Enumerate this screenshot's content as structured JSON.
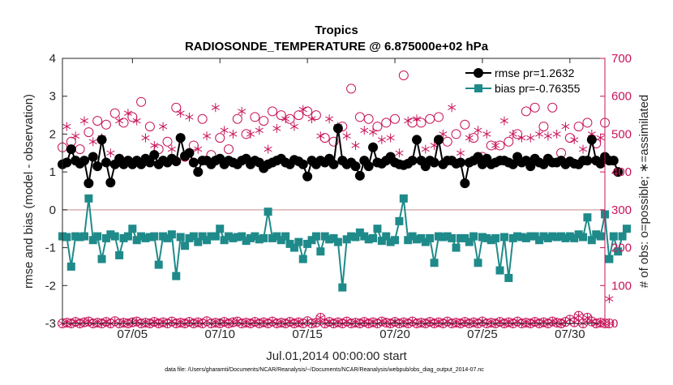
{
  "colors": {
    "rmse": "#000000",
    "bias": "#1f8a8a",
    "obs": "#c8145a",
    "zeroline": "#d9b0b0",
    "axis": "#262626"
  },
  "chart_data": {
    "type": "line",
    "title": "Tropics",
    "subtitle": "RADIOSONDE_TEMPERATURE @ 6.875000e+02 hPa",
    "xlabel": "Jul.01,2014 00:00:00 start",
    "ylabel_left": "rmse and bias (model - observation)",
    "ylabel_right": "# of obs: o=possible; ∗=assimilated",
    "footer": "data file: /Users/gharamti/Documents/NCAR/Reanalysis/~/Documents/NCAR/Reanalysis/webpub/obs_diag_output_2014-07.nc",
    "xlim": [
      1.0,
      32.0
    ],
    "ylim_left": [
      -3,
      4
    ],
    "ylim_right": [
      0,
      700
    ],
    "x_ticks": [
      5,
      10,
      15,
      20,
      25,
      30
    ],
    "x_tick_labels": [
      "07/05",
      "07/10",
      "07/15",
      "07/20",
      "07/25",
      "07/30"
    ],
    "y_left_ticks": [
      -3,
      -2,
      -1,
      0,
      1,
      2,
      3,
      4
    ],
    "y_left_tick_labels": [
      "-3",
      "-2",
      "-1",
      "0",
      "1",
      "2",
      "3",
      "4"
    ],
    "y_right_ticks": [
      0,
      100,
      200,
      300,
      400,
      500,
      600,
      700
    ],
    "y_right_tick_labels": [
      "0",
      "100",
      "200",
      "300",
      "400",
      "500",
      "600",
      "700"
    ],
    "legend": {
      "position": "top-right",
      "entries": [
        {
          "name": "rmse pr=1.2632",
          "series": "rmse"
        },
        {
          "name": "bias pr=-0.76355",
          "series": "bias"
        }
      ]
    },
    "x_step_days": 0.25,
    "series": [
      {
        "name": "rmse",
        "values": [
          1.2,
          1.25,
          1.6,
          1.3,
          1.22,
          1.3,
          0.7,
          1.4,
          1.15,
          1.85,
          1.25,
          0.72,
          1.2,
          1.35,
          1.2,
          1.3,
          1.2,
          1.3,
          1.2,
          1.35,
          1.25,
          1.45,
          1.2,
          1.3,
          1.25,
          1.35,
          1.28,
          1.9,
          1.42,
          1.5,
          1.25,
          1.0,
          1.3,
          1.3,
          1.2,
          1.3,
          1.35,
          1.2,
          1.3,
          1.25,
          1.2,
          1.3,
          1.35,
          1.2,
          1.3,
          1.25,
          1.1,
          1.2,
          1.25,
          1.3,
          1.35,
          1.25,
          1.2,
          1.32,
          1.28,
          1.2,
          0.88,
          1.3,
          1.2,
          1.3,
          1.25,
          1.35,
          1.2,
          2.15,
          1.3,
          1.2,
          1.25,
          1.15,
          0.9,
          1.3,
          1.15,
          1.65,
          1.25,
          1.22,
          1.3,
          1.4,
          1.25,
          1.2,
          1.18,
          1.22,
          1.3,
          1.85,
          1.3,
          1.15,
          1.3,
          1.25,
          1.85,
          1.2,
          1.3,
          1.3,
          1.22,
          1.25,
          0.7,
          1.25,
          1.3,
          1.4,
          1.2,
          1.35,
          1.2,
          1.25,
          1.3,
          1.3,
          1.25,
          1.2,
          1.4,
          1.25,
          1.3,
          1.15,
          1.35,
          1.25,
          1.2,
          1.35,
          1.25,
          1.25,
          1.3,
          1.2,
          1.28,
          1.22,
          1.2,
          1.3,
          1.3,
          1.85,
          1.3,
          1.22,
          1.4,
          1.3,
          1.3,
          1.0
        ]
      },
      {
        "name": "bias",
        "values": [
          -0.7,
          -0.72,
          -1.5,
          -0.7,
          -0.72,
          -0.7,
          0.3,
          -0.8,
          -0.7,
          -1.3,
          -0.75,
          -0.65,
          -0.7,
          -1.2,
          -0.75,
          -0.7,
          -0.5,
          -0.8,
          -0.7,
          -0.75,
          -0.72,
          -0.7,
          -1.45,
          -0.7,
          -0.75,
          -0.65,
          -1.75,
          -0.72,
          -0.95,
          -0.75,
          -0.7,
          -0.85,
          -0.7,
          -0.8,
          -0.7,
          -0.7,
          -0.5,
          -0.8,
          -0.7,
          -0.75,
          -0.72,
          -0.7,
          -0.82,
          -0.75,
          -0.7,
          -0.78,
          -0.75,
          -0.05,
          -0.75,
          -0.7,
          -0.8,
          -0.7,
          -0.9,
          -1.0,
          -0.85,
          -1.3,
          -0.9,
          -0.8,
          -0.7,
          -1.1,
          -0.7,
          -0.78,
          -0.75,
          -0.85,
          -2.05,
          -0.78,
          -0.7,
          -0.72,
          -0.6,
          -0.7,
          -0.78,
          -0.75,
          -0.5,
          -0.82,
          -0.7,
          -0.85,
          -0.8,
          -0.3,
          0.3,
          -0.8,
          -0.7,
          -0.78,
          -0.75,
          -0.85,
          -0.75,
          -1.4,
          -0.7,
          -0.72,
          -0.7,
          -0.75,
          -1.0,
          -0.75,
          -0.75,
          -0.85,
          -0.7,
          -1.4,
          -0.72,
          -0.75,
          -0.8,
          -0.75,
          -1.6,
          -0.72,
          -1.8,
          -0.75,
          -0.7,
          -0.72,
          -0.75,
          -0.7,
          -0.7,
          -0.8,
          -0.7,
          -0.75,
          -0.7,
          -0.72,
          -0.7,
          -0.75,
          -0.7,
          -0.75,
          -0.65,
          -0.72,
          -0.2,
          -0.8,
          -0.65,
          -0.7,
          -0.12,
          -1.3,
          -0.7,
          -1.1,
          -0.7,
          -0.5
        ]
      },
      {
        "name": "obs_possible",
        "values": [
          465,
          530,
          480,
          505,
          460,
          545,
          505,
          490,
          535,
          500,
          525,
          460,
          555,
          545,
          530,
          565,
          545,
          545,
          585,
          500,
          520,
          480,
          460,
          530,
          480,
          470,
          570,
          565,
          440,
          555,
          470,
          470,
          540,
          505,
          445,
          580,
          490,
          520,
          460,
          510,
          540,
          570,
          500,
          510,
          545,
          520,
          535,
          470,
          560,
          525,
          550,
          550,
          540,
          530,
          550,
          575,
          560,
          550,
          550,
          505,
          490,
          550,
          480,
          530,
          520,
          505,
          620,
          480,
          545,
          520,
          540,
          515,
          520,
          495,
          530,
          500,
          540,
          460,
          655,
          545,
          530,
          550,
          530,
          470,
          540,
          480,
          545,
          510,
          480,
          580,
          500,
          460,
          525,
          500,
          490,
          520,
          440,
          510,
          470,
          480,
          470,
          545,
          480,
          510,
          500,
          500,
          560,
          500,
          570,
          510,
          520,
          505,
          570,
          510,
          450,
          530,
          490,
          495,
          520,
          470,
          530,
          510,
          475,
          500,
          530,
          75
        ]
      },
      {
        "name": "obs_assimilated",
        "values": [
          455,
          520,
          470,
          495,
          450,
          535,
          495,
          480,
          525,
          490,
          515,
          450,
          545,
          535,
          520,
          555,
          535,
          535,
          575,
          490,
          510,
          470,
          450,
          520,
          470,
          460,
          560,
          555,
          430,
          545,
          460,
          460,
          530,
          495,
          435,
          570,
          480,
          510,
          450,
          500,
          530,
          560,
          490,
          500,
          535,
          510,
          525,
          460,
          550,
          515,
          540,
          540,
          530,
          520,
          540,
          565,
          550,
          540,
          540,
          495,
          480,
          540,
          470,
          520,
          510,
          495,
          610,
          470,
          535,
          510,
          530,
          505,
          510,
          485,
          520,
          490,
          530,
          450,
          645,
          535,
          520,
          540,
          520,
          460,
          530,
          470,
          535,
          500,
          470,
          570,
          490,
          450,
          515,
          490,
          480,
          510,
          430,
          500,
          460,
          470,
          460,
          535,
          470,
          500,
          490,
          490,
          550,
          490,
          560,
          500,
          510,
          495,
          560,
          500,
          440,
          520,
          480,
          485,
          510,
          460,
          520,
          500,
          465,
          490,
          520,
          65
        ]
      },
      {
        "name": "obs_possible_low",
        "values": [
          0,
          2,
          0,
          4,
          0,
          3,
          5,
          0,
          2,
          0,
          4,
          0,
          6,
          0,
          2,
          0,
          3,
          5,
          0,
          2,
          0,
          4,
          0,
          3,
          0,
          5,
          0,
          2,
          0,
          4,
          0,
          3,
          0,
          6,
          0,
          2,
          0,
          4,
          0,
          3,
          5,
          0,
          2,
          0,
          4,
          0,
          3,
          0,
          5,
          0,
          2,
          0,
          4,
          0,
          3,
          0,
          6,
          0,
          2,
          15,
          0,
          4,
          0,
          3,
          0,
          5,
          0,
          2,
          0,
          4,
          0,
          3,
          0,
          5,
          2,
          0,
          4,
          0,
          3,
          0,
          5,
          0,
          2,
          0,
          4,
          0,
          3,
          0,
          5,
          0,
          2,
          0,
          4,
          0,
          3,
          0,
          5,
          0,
          2,
          0,
          4,
          0,
          3,
          0,
          5,
          0,
          2,
          0,
          4,
          0,
          3,
          0,
          5,
          2,
          0,
          4,
          10,
          3,
          20,
          0,
          15,
          5,
          0,
          2,
          0,
          0
        ]
      }
    ]
  }
}
